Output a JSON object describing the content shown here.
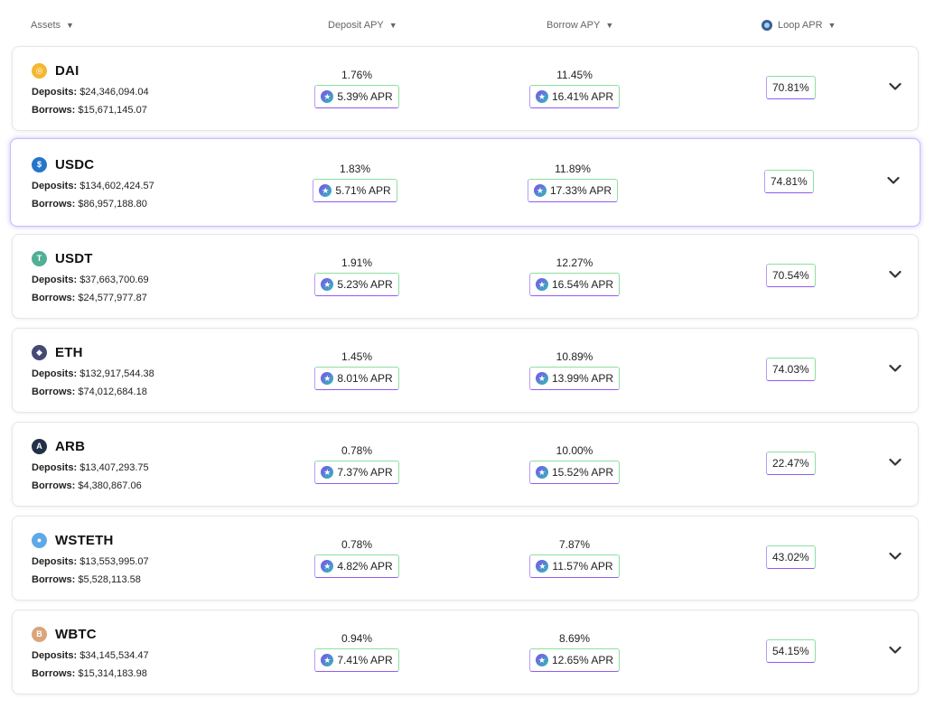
{
  "header": {
    "assets": "Assets",
    "deposit_apy": "Deposit APY",
    "borrow_apy": "Borrow APY",
    "loop_apr": "Loop APR"
  },
  "labels": {
    "deposits": "Deposits:",
    "borrows": "Borrows:"
  },
  "assets": [
    {
      "name": "DAI",
      "icon": "dai-icon",
      "color": "#f4b731",
      "glyph": "◎",
      "deposits": "$24,346,094.04",
      "borrows": "$15,671,145.07",
      "deposit_apy": "1.76%",
      "deposit_apr": "5.39% APR",
      "borrow_apy": "11.45%",
      "borrow_apr": "16.41% APR",
      "loop_apr": "70.81%"
    },
    {
      "name": "USDC",
      "icon": "usdc-icon",
      "color": "#2775ca",
      "glyph": "$",
      "deposits": "$134,602,424.57",
      "borrows": "$86,957,188.80",
      "deposit_apy": "1.83%",
      "deposit_apr": "5.71% APR",
      "borrow_apy": "11.89%",
      "borrow_apr": "17.33% APR",
      "loop_apr": "74.81%",
      "selected": true
    },
    {
      "name": "USDT",
      "icon": "usdt-icon",
      "color": "#50af95",
      "glyph": "T",
      "deposits": "$37,663,700.69",
      "borrows": "$24,577,977.87",
      "deposit_apy": "1.91%",
      "deposit_apr": "5.23% APR",
      "borrow_apy": "12.27%",
      "borrow_apr": "16.54% APR",
      "loop_apr": "70.54%"
    },
    {
      "name": "ETH",
      "icon": "eth-icon",
      "color": "#454a75",
      "glyph": "◆",
      "deposits": "$132,917,544.38",
      "borrows": "$74,012,684.18",
      "deposit_apy": "1.45%",
      "deposit_apr": "8.01% APR",
      "borrow_apy": "10.89%",
      "borrow_apr": "13.99% APR",
      "loop_apr": "74.03%"
    },
    {
      "name": "ARB",
      "icon": "arb-icon",
      "color": "#213147",
      "glyph": "A",
      "deposits": "$13,407,293.75",
      "borrows": "$4,380,867.06",
      "deposit_apy": "0.78%",
      "deposit_apr": "7.37% APR",
      "borrow_apy": "10.00%",
      "borrow_apr": "15.52% APR",
      "loop_apr": "22.47%"
    },
    {
      "name": "WSTETH",
      "icon": "wsteth-icon",
      "color": "#5fa8e8",
      "glyph": "●",
      "deposits": "$13,553,995.07",
      "borrows": "$5,528,113.58",
      "deposit_apy": "0.78%",
      "deposit_apr": "4.82% APR",
      "borrow_apy": "7.87%",
      "borrow_apr": "11.57% APR",
      "loop_apr": "43.02%"
    },
    {
      "name": "WBTC",
      "icon": "wbtc-icon",
      "color": "#d9a57a",
      "glyph": "B",
      "deposits": "$34,145,534.47",
      "borrows": "$15,314,183.98",
      "deposit_apy": "0.94%",
      "deposit_apr": "7.41% APR",
      "borrow_apy": "8.69%",
      "borrow_apr": "12.65% APR",
      "loop_apr": "54.15%"
    }
  ]
}
